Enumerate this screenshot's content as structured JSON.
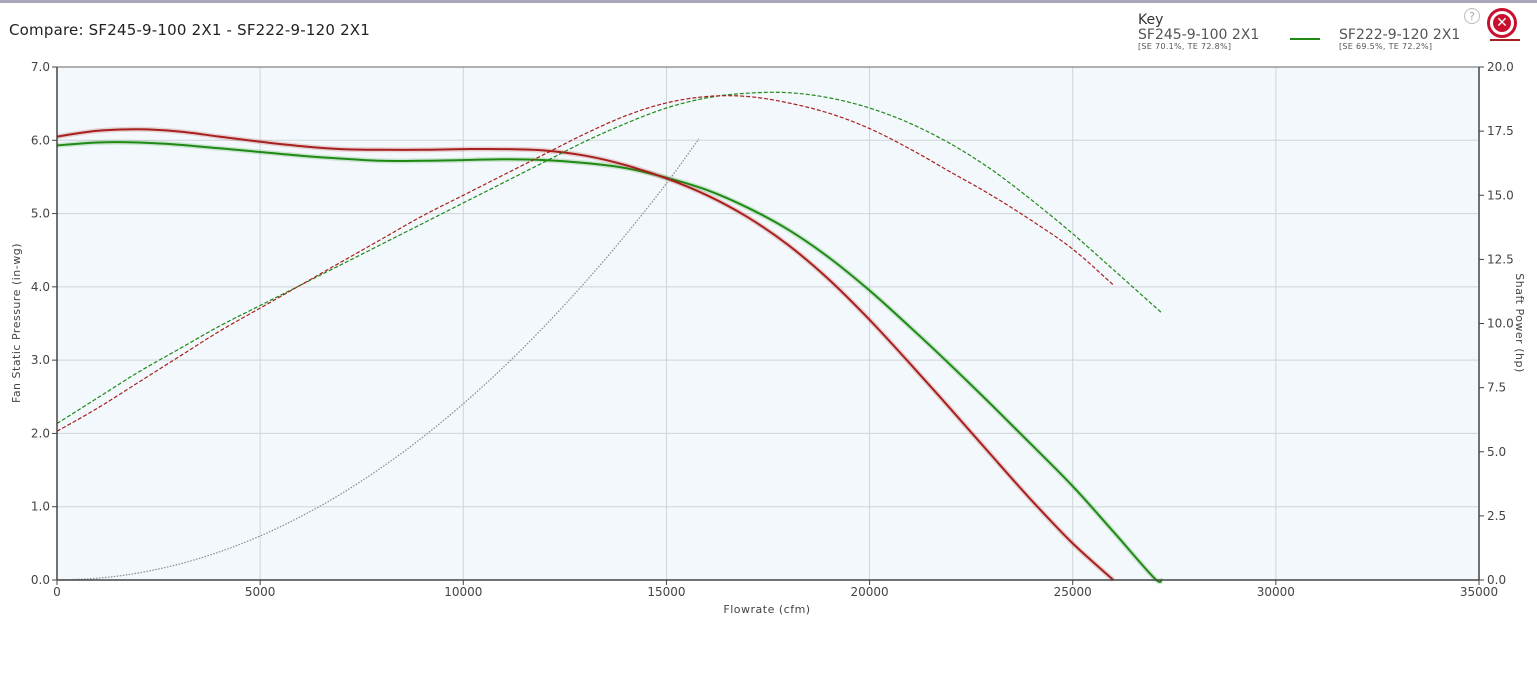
{
  "header": {
    "title": "Compare: SF245-9-100 2X1 - SF222-9-120 2X1"
  },
  "key": {
    "title": "Key",
    "items": [
      {
        "name": "SF245-9-100 2X1",
        "sub": "[SE 70.1%, TE 72.8%]",
        "color": "#1e8a14"
      },
      {
        "name": "SF222-9-120 2X1",
        "sub": "[SE 69.5%, TE 72.2%]",
        "color": "#a8201e"
      }
    ]
  },
  "icons": {
    "help": "?",
    "close": "✕"
  },
  "chart_data": {
    "type": "line",
    "xlabel": "Flowrate (cfm)",
    "ylabel": "Fan Static Pressure (in-wg)",
    "y2label": "Shaft Power (hp)",
    "xlim": [
      0,
      35000
    ],
    "ylim": [
      0,
      7
    ],
    "y2lim": [
      0,
      20
    ],
    "x_ticks": [
      "0",
      "5000",
      "10000",
      "15000",
      "20000",
      "25000",
      "30000",
      "35000"
    ],
    "y_ticks": [
      "0.0",
      "1.0",
      "2.0",
      "3.0",
      "4.0",
      "5.0",
      "6.0",
      "7.0"
    ],
    "y2_ticks": [
      "0.0",
      "2.5",
      "5.0",
      "7.5",
      "10.0",
      "12.5",
      "15.0",
      "17.5",
      "20.0"
    ],
    "grid": true,
    "legend_placement": "top-right",
    "series": [
      {
        "name": "SF245-9-100 2X1",
        "axis": "left",
        "color": "#1e8a14",
        "style": "solid",
        "x": [
          0,
          1000,
          2000,
          3000,
          4000,
          5000,
          6000,
          7000,
          8000,
          9000,
          10000,
          11000,
          12000,
          13000,
          14000,
          15000,
          16000,
          17000,
          18000,
          19000,
          20000,
          21000,
          22000,
          23000,
          24000,
          25000,
          26000,
          27000,
          27200
        ],
        "y": [
          5.93,
          5.97,
          5.97,
          5.94,
          5.89,
          5.84,
          5.79,
          5.75,
          5.72,
          5.72,
          5.73,
          5.74,
          5.73,
          5.69,
          5.62,
          5.49,
          5.32,
          5.08,
          4.78,
          4.4,
          3.95,
          3.45,
          2.93,
          2.39,
          1.84,
          1.28,
          0.66,
          0.03,
          0.0
        ]
      },
      {
        "name": "SF222-9-120 2X1",
        "axis": "left",
        "color": "#a8201e",
        "style": "solid",
        "x": [
          0,
          1000,
          2000,
          3000,
          4000,
          5000,
          6000,
          7000,
          8000,
          9000,
          10000,
          11000,
          12000,
          13000,
          14000,
          15000,
          16000,
          17000,
          18000,
          19000,
          20000,
          21000,
          22000,
          23000,
          24000,
          25000,
          26000
        ],
        "y": [
          6.05,
          6.13,
          6.15,
          6.12,
          6.05,
          5.98,
          5.92,
          5.88,
          5.87,
          5.87,
          5.88,
          5.88,
          5.86,
          5.79,
          5.66,
          5.48,
          5.25,
          4.95,
          4.57,
          4.1,
          3.55,
          2.95,
          2.33,
          1.7,
          1.08,
          0.5,
          0.0
        ]
      },
      {
        "name": "SF245-9-100 2X1",
        "axis": "right",
        "color": "#1e8a14",
        "style": "dashed",
        "x": [
          0,
          1000,
          2000,
          3000,
          4000,
          5000,
          6000,
          7000,
          8000,
          9000,
          10000,
          11000,
          12000,
          13000,
          14000,
          15000,
          16000,
          17000,
          18000,
          19000,
          20000,
          21000,
          22000,
          23000,
          24000,
          25000,
          26000,
          27200
        ],
        "y": [
          6.1,
          7.1,
          8.1,
          9.0,
          9.9,
          10.7,
          11.5,
          12.3,
          13.1,
          13.9,
          14.7,
          15.5,
          16.3,
          17.1,
          17.8,
          18.4,
          18.8,
          18.98,
          19.0,
          18.8,
          18.4,
          17.8,
          17.0,
          16.0,
          14.8,
          13.5,
          12.1,
          10.4
        ]
      },
      {
        "name": "SF222-9-120 2X1",
        "axis": "right",
        "color": "#a8201e",
        "style": "dashed",
        "x": [
          0,
          1000,
          2000,
          3000,
          4000,
          5000,
          6000,
          7000,
          8000,
          9000,
          10000,
          11000,
          12000,
          13000,
          14000,
          15000,
          16000,
          17000,
          18000,
          19000,
          20000,
          21000,
          22000,
          23000,
          24000,
          25000,
          26000
        ],
        "y": [
          5.8,
          6.7,
          7.7,
          8.7,
          9.7,
          10.6,
          11.5,
          12.4,
          13.3,
          14.2,
          15.0,
          15.8,
          16.6,
          17.4,
          18.1,
          18.6,
          18.85,
          18.85,
          18.6,
          18.2,
          17.6,
          16.8,
          15.9,
          15.0,
          14.0,
          12.9,
          11.5
        ]
      },
      {
        "name": "",
        "axis": "left",
        "color": "#8a8a8a",
        "style": "dotted",
        "x": [
          0,
          1000,
          2000,
          3000,
          4000,
          5000,
          6000,
          7000,
          8000,
          9000,
          10000,
          11000,
          12000,
          13000,
          14000,
          15000,
          15800
        ],
        "y": [
          0.0,
          0.024,
          0.096,
          0.216,
          0.385,
          0.601,
          0.866,
          1.178,
          1.539,
          1.948,
          2.405,
          2.91,
          3.463,
          4.064,
          4.713,
          5.41,
          6.02
        ]
      }
    ]
  }
}
